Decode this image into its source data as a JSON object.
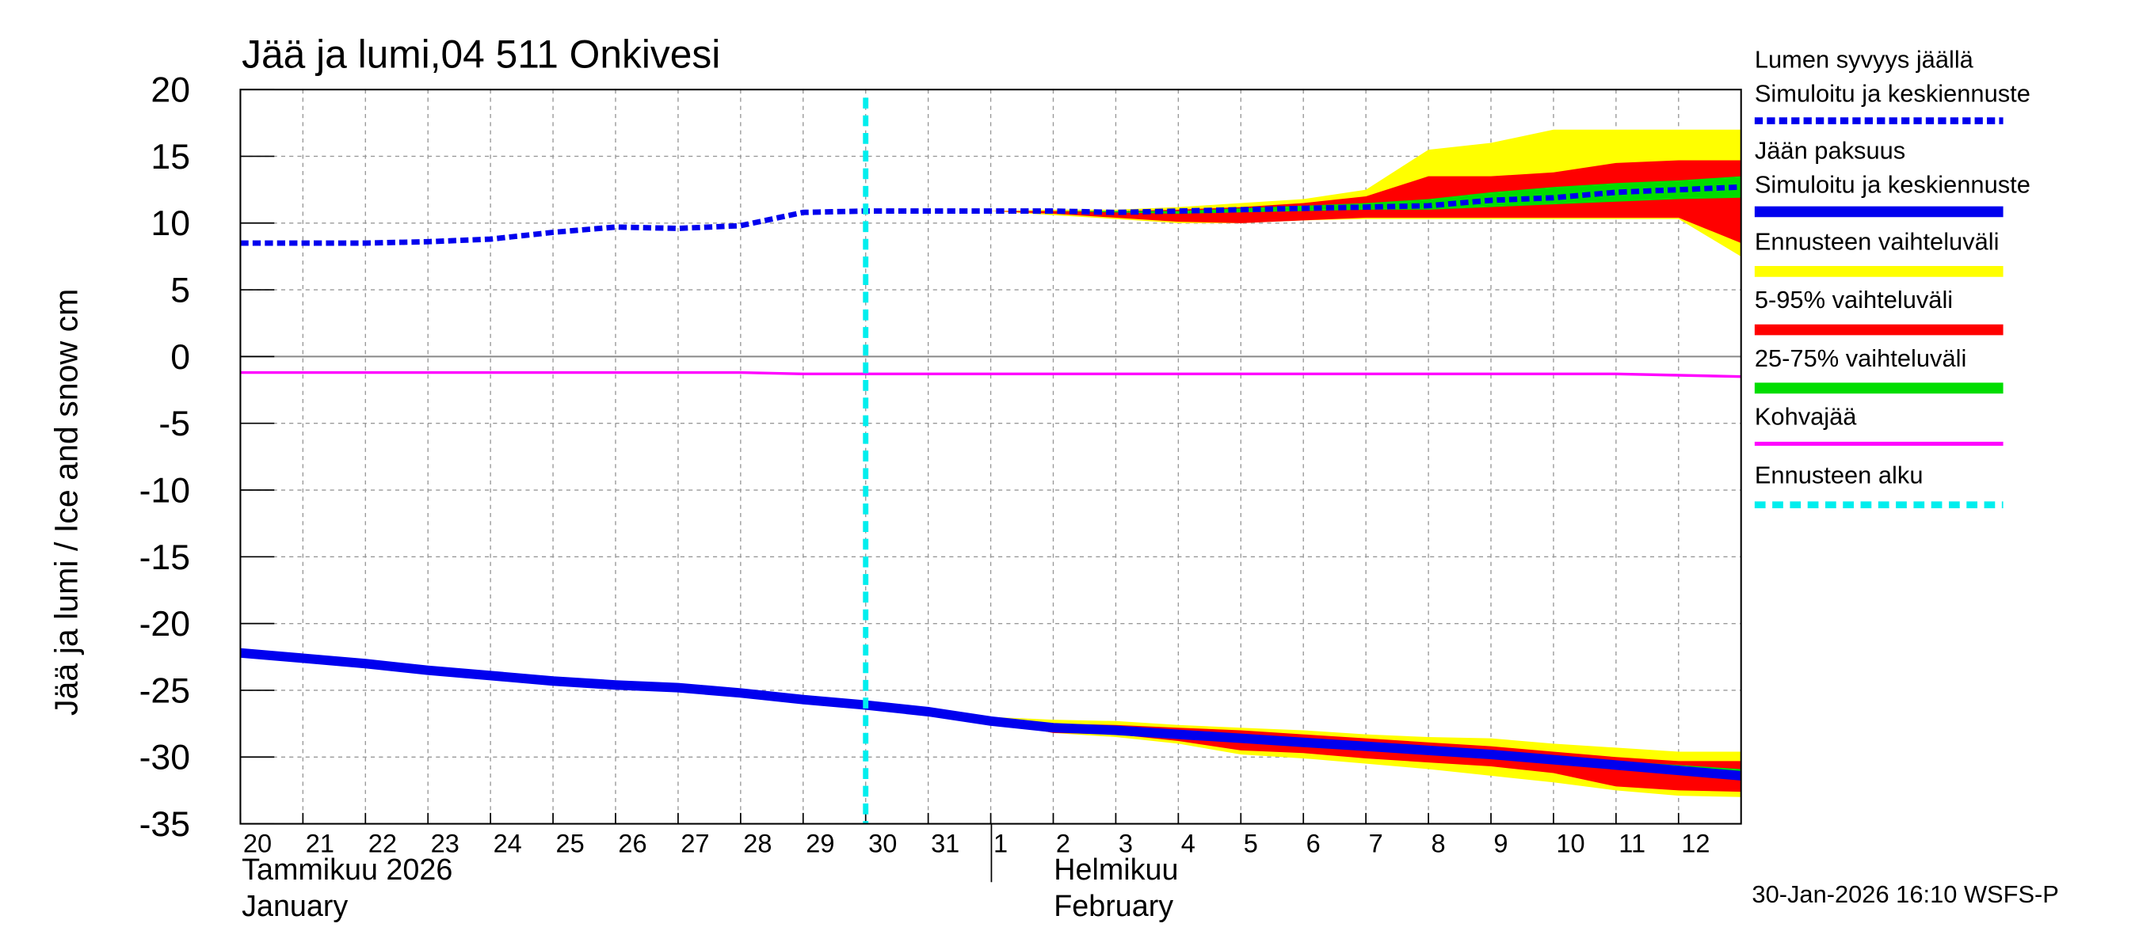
{
  "chart_data": {
    "type": "line",
    "title": "Jää ja lumi,04 511 Onkivesi",
    "y_label": "Jää ja lumi / Ice and snow    cm",
    "footer": "30-Jan-2026 16:10 WSFS-P",
    "month_labels": [
      "Tammikuu  2026",
      "January",
      "Helmikuu",
      "February"
    ],
    "grid": true,
    "xlim": [
      "2026-01-20",
      "2026-02-13"
    ],
    "xticks": [
      {
        "value": "2026-01-20",
        "label": "20"
      },
      {
        "value": "2026-01-21",
        "label": "21"
      },
      {
        "value": "2026-01-22",
        "label": "22"
      },
      {
        "value": "2026-01-23",
        "label": "23"
      },
      {
        "value": "2026-01-24",
        "label": "24"
      },
      {
        "value": "2026-01-25",
        "label": "25"
      },
      {
        "value": "2026-01-26",
        "label": "26"
      },
      {
        "value": "2026-01-27",
        "label": "27"
      },
      {
        "value": "2026-01-28",
        "label": "28"
      },
      {
        "value": "2026-01-29",
        "label": "29"
      },
      {
        "value": "2026-01-30",
        "label": "30"
      },
      {
        "value": "2026-01-31",
        "label": "31"
      },
      {
        "value": "2026-02-01",
        "label": "1"
      },
      {
        "value": "2026-02-02",
        "label": "2"
      },
      {
        "value": "2026-02-03",
        "label": "3"
      },
      {
        "value": "2026-02-04",
        "label": "4"
      },
      {
        "value": "2026-02-05",
        "label": "5"
      },
      {
        "value": "2026-02-06",
        "label": "6"
      },
      {
        "value": "2026-02-07",
        "label": "7"
      },
      {
        "value": "2026-02-08",
        "label": "8"
      },
      {
        "value": "2026-02-09",
        "label": "9"
      },
      {
        "value": "2026-02-10",
        "label": "10"
      },
      {
        "value": "2026-02-11",
        "label": "11"
      },
      {
        "value": "2026-02-12",
        "label": "12"
      }
    ],
    "ylim": [
      -35,
      20
    ],
    "yticks": [
      -35,
      -30,
      -25,
      -20,
      -15,
      -10,
      -5,
      0,
      5,
      10,
      15,
      20
    ],
    "x": [
      "2026-01-20",
      "2026-01-21",
      "2026-01-22",
      "2026-01-23",
      "2026-01-24",
      "2026-01-25",
      "2026-01-26",
      "2026-01-27",
      "2026-01-28",
      "2026-01-29",
      "2026-01-30",
      "2026-01-31",
      "2026-02-01",
      "2026-02-02",
      "2026-02-03",
      "2026-02-04",
      "2026-02-05",
      "2026-02-06",
      "2026-02-07",
      "2026-02-08",
      "2026-02-09",
      "2026-02-10",
      "2026-02-11",
      "2026-02-12",
      "2026-02-13"
    ],
    "bands": [
      {
        "name": "Ennusteen vaihteluväli",
        "color": "#ffff00",
        "snow": {
          "high": [
            null,
            null,
            null,
            null,
            null,
            null,
            null,
            null,
            null,
            null,
            null,
            null,
            10.9,
            11.0,
            11.0,
            11.2,
            11.5,
            11.8,
            12.5,
            15.5,
            16.0,
            17.0,
            17.0,
            17.0,
            17.0
          ],
          "low": [
            null,
            null,
            null,
            null,
            null,
            null,
            null,
            null,
            null,
            null,
            null,
            null,
            10.9,
            10.6,
            10.3,
            10.0,
            10.0,
            10.2,
            10.3,
            10.3,
            10.3,
            10.3,
            10.3,
            10.3,
            7.5
          ]
        },
        "ice": {
          "high": [
            null,
            null,
            null,
            null,
            null,
            null,
            null,
            null,
            null,
            null,
            null,
            null,
            -27.0,
            -27.2,
            -27.3,
            -27.6,
            -27.8,
            -28.0,
            -28.3,
            -28.5,
            -28.6,
            -29.0,
            -29.3,
            -29.6,
            -29.6
          ],
          "low": [
            null,
            null,
            null,
            null,
            null,
            null,
            null,
            null,
            null,
            null,
            null,
            null,
            -27.3,
            -28.2,
            -28.5,
            -29.0,
            -29.8,
            -30.1,
            -30.5,
            -30.9,
            -31.4,
            -31.9,
            -32.5,
            -32.9,
            -33.0
          ]
        }
      },
      {
        "name": "5-95% vaihteluväli",
        "color": "#ff0000",
        "snow": {
          "high": [
            null,
            null,
            null,
            null,
            null,
            null,
            null,
            null,
            null,
            null,
            null,
            null,
            10.9,
            10.9,
            10.9,
            11.0,
            11.2,
            11.5,
            12.0,
            13.5,
            13.5,
            13.8,
            14.5,
            14.7,
            14.7
          ],
          "low": [
            null,
            null,
            null,
            null,
            null,
            null,
            null,
            null,
            null,
            null,
            null,
            null,
            10.9,
            10.7,
            10.4,
            10.1,
            10.0,
            10.2,
            10.4,
            10.4,
            10.4,
            10.4,
            10.4,
            10.4,
            8.5
          ]
        },
        "ice": {
          "high": [
            null,
            null,
            null,
            null,
            null,
            null,
            null,
            null,
            null,
            null,
            null,
            null,
            -27.1,
            -27.5,
            -27.6,
            -27.8,
            -28.0,
            -28.3,
            -28.6,
            -28.9,
            -29.2,
            -29.6,
            -30.0,
            -30.3,
            -30.3
          ],
          "low": [
            null,
            null,
            null,
            null,
            null,
            null,
            null,
            null,
            null,
            null,
            null,
            null,
            -27.3,
            -28.2,
            -28.3,
            -28.8,
            -29.5,
            -29.7,
            -30.1,
            -30.4,
            -30.7,
            -31.2,
            -32.2,
            -32.5,
            -32.6
          ]
        }
      },
      {
        "name": "25-75% vaihteluväli",
        "color": "#00dd00",
        "snow": {
          "high": [
            null,
            null,
            null,
            null,
            null,
            null,
            null,
            null,
            null,
            null,
            null,
            null,
            10.9,
            10.9,
            10.9,
            10.9,
            11.1,
            11.3,
            11.5,
            11.8,
            12.3,
            12.7,
            13.0,
            13.2,
            13.5
          ],
          "low": [
            null,
            null,
            null,
            null,
            null,
            null,
            null,
            null,
            null,
            null,
            null,
            null,
            10.9,
            10.9,
            10.8,
            10.7,
            10.8,
            10.9,
            11.0,
            11.0,
            11.2,
            11.4,
            11.6,
            11.8,
            11.9
          ]
        },
        "ice": {
          "high": [
            null,
            null,
            null,
            null,
            null,
            null,
            null,
            null,
            null,
            null,
            null,
            null,
            -27.3,
            -27.6,
            -27.8,
            -28.1,
            -28.4,
            -28.7,
            -29.0,
            -29.3,
            -29.6,
            -29.9,
            -30.3,
            -30.6,
            -30.9
          ],
          "low": [
            null,
            null,
            null,
            null,
            null,
            null,
            null,
            null,
            null,
            null,
            null,
            null,
            -27.4,
            -28.0,
            -28.2,
            -28.5,
            -28.8,
            -29.1,
            -29.4,
            -29.7,
            -30.0,
            -30.4,
            -30.8,
            -31.2,
            -31.7
          ]
        }
      }
    ],
    "series": [
      {
        "name": "Lumen syvyys jäällä",
        "subname": "Simuloitu ja keskiennuste",
        "color": "#0000ee",
        "dashed": true,
        "values": [
          8.5,
          8.5,
          8.5,
          8.6,
          8.8,
          9.3,
          9.7,
          9.6,
          9.8,
          10.8,
          10.9,
          10.9,
          10.9,
          10.9,
          10.8,
          10.9,
          11.0,
          11.1,
          11.2,
          11.3,
          11.7,
          11.9,
          12.3,
          12.5,
          12.7
        ]
      },
      {
        "name": "Jään paksuus",
        "subname": "Simuloitu ja keskiennuste",
        "color": "#0000ee",
        "dashed": false,
        "values": [
          -22.2,
          -22.6,
          -23.0,
          -23.5,
          -23.9,
          -24.3,
          -24.6,
          -24.8,
          -25.2,
          -25.7,
          -26.1,
          -26.6,
          -27.3,
          -27.8,
          -28.0,
          -28.3,
          -28.6,
          -28.9,
          -29.2,
          -29.5,
          -29.8,
          -30.2,
          -30.6,
          -31.0,
          -31.4
        ]
      },
      {
        "name": "Kohvajää",
        "color": "#ff00ff",
        "dashed": false,
        "values": [
          -1.2,
          -1.2,
          -1.2,
          -1.2,
          -1.2,
          -1.2,
          -1.2,
          -1.2,
          -1.2,
          -1.3,
          -1.3,
          -1.3,
          -1.3,
          -1.3,
          -1.3,
          -1.3,
          -1.3,
          -1.3,
          -1.3,
          -1.3,
          -1.3,
          -1.3,
          -1.3,
          -1.4,
          -1.5
        ]
      }
    ],
    "forecast_start": {
      "name": "Ennusteen alku",
      "x": "2026-01-30",
      "color": "#00eeee"
    }
  }
}
